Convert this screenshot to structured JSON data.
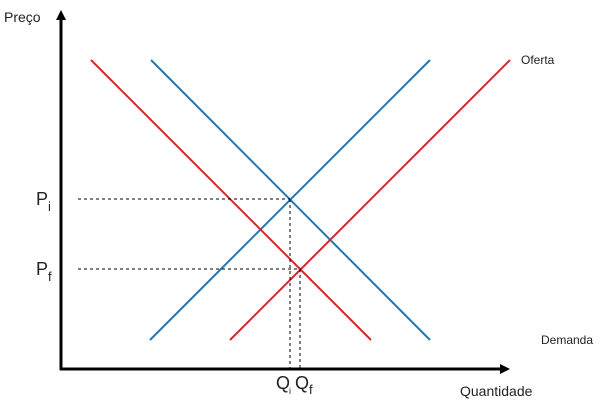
{
  "axes": {
    "y_title": "Preço",
    "x_title": "Quantidade"
  },
  "curve_labels": {
    "supply": "Oferta",
    "demand": "Demanda"
  },
  "ticks": {
    "p_initial": {
      "main": "P",
      "sub": "i"
    },
    "p_final": {
      "main": "P",
      "sub": "f"
    },
    "q_initial": {
      "main": "Q",
      "sub": "i"
    },
    "q_final": {
      "main": "Q",
      "sub": "f"
    }
  },
  "colors": {
    "initial_curves": "#1f77b4",
    "final_curves": "#d62728",
    "axis": "#000000",
    "guides": "#000000"
  }
}
